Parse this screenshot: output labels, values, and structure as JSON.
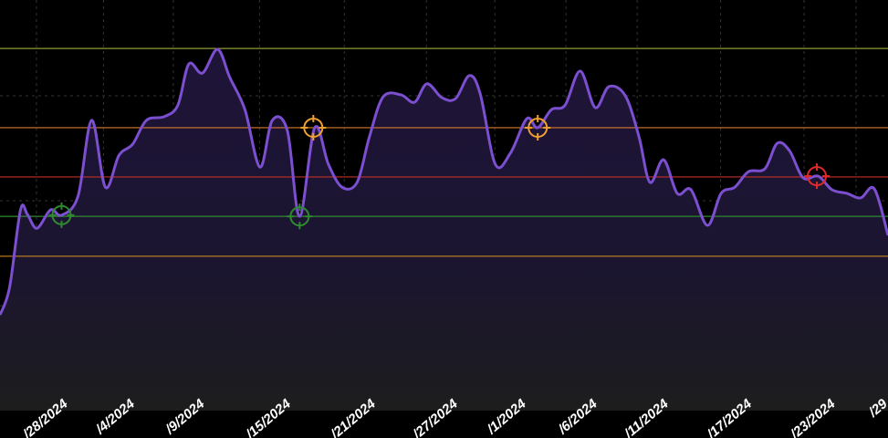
{
  "chart_data": {
    "type": "line",
    "color": "#7b4fd0",
    "x": [
      0,
      0.7,
      1.5,
      2,
      2.7,
      3.7,
      4.5,
      5.7,
      6.7,
      7.7,
      8.7,
      9.7,
      10.7,
      12,
      13,
      13.8,
      14.8,
      15.9,
      16.8,
      17.9,
      19,
      19.9,
      21,
      21.9,
      23,
      24,
      25,
      26.1,
      27,
      28,
      29.3,
      30.3,
      31.2,
      32.3,
      33.3,
      34.3,
      35.1,
      36.2,
      37.3,
      38.5,
      39.3,
      40.3,
      41.3,
      42.4,
      43.5,
      44.5,
      45.7,
      46.7,
      47.5,
      48.5,
      49.5,
      50.5,
      51.7,
      52.7,
      53.7,
      54.7,
      55.9,
      56.8,
      57.7,
      58.7,
      59.8,
      60.8,
      61.9,
      62.9,
      63.9,
      64.9
    ],
    "values": [
      23.3,
      30,
      48.9,
      47.8,
      44.4,
      48.9,
      47.6,
      52.2,
      70.7,
      54.4,
      62.2,
      64.9,
      70.7,
      71.6,
      74.4,
      84.4,
      82.2,
      88,
      81.1,
      73.3,
      59.3,
      70.7,
      68.2,
      47.3,
      68.9,
      60,
      54.4,
      55.6,
      66.7,
      76.4,
      76.9,
      75.1,
      79.6,
      76.2,
      76,
      81.6,
      77.1,
      60,
      62.7,
      71.1,
      68.9,
      73.3,
      74.4,
      82.7,
      73.8,
      78.9,
      76.7,
      66.7,
      55.6,
      61.1,
      52.9,
      53.8,
      45.1,
      52.9,
      54.4,
      58.2,
      58.9,
      65.1,
      63.3,
      56.7,
      57.1,
      53.8,
      52.9,
      51.8,
      54,
      42.7
    ],
    "xlim": [
      0,
      64.9
    ],
    "ylim": [
      0,
      100
    ],
    "xticks": [
      {
        "value": 5,
        "label": "/28/2024"
      },
      {
        "value": 9.9,
        "label": "/4/2024"
      },
      {
        "value": 15,
        "label": "/9/2024"
      },
      {
        "value": 21.3,
        "label": "/15/2024"
      },
      {
        "value": 27.5,
        "label": "/21/2024"
      },
      {
        "value": 33.5,
        "label": "/27/2024"
      },
      {
        "value": 38.5,
        "label": "/1/2024"
      },
      {
        "value": 43.7,
        "label": "/6/2024"
      },
      {
        "value": 48.9,
        "label": "/11/2024"
      },
      {
        "value": 55,
        "label": "/17/2024"
      },
      {
        "value": 61.1,
        "label": "/23/2024"
      },
      {
        "value": 64.9,
        "label": "/29"
      }
    ],
    "levels": [
      {
        "value": 88.2,
        "color": "#8f9a34"
      },
      {
        "value": 68.9,
        "color": "#d9782a"
      },
      {
        "value": 56.9,
        "color": "#c22f2a"
      },
      {
        "value": 47.3,
        "color": "#2f8a2f"
      },
      {
        "value": 37.6,
        "color": "#c8861f"
      }
    ],
    "markers": [
      {
        "x": 4.5,
        "y": 47.6,
        "color": "#2f8a2f"
      },
      {
        "x": 21.9,
        "y": 47.3,
        "color": "#2f8a2f"
      },
      {
        "x": 22.9,
        "y": 68.9,
        "color": "#f0a030"
      },
      {
        "x": 39.3,
        "y": 68.9,
        "color": "#f0a030"
      },
      {
        "x": 59.7,
        "y": 57.1,
        "color": "#e02a2a"
      }
    ]
  }
}
